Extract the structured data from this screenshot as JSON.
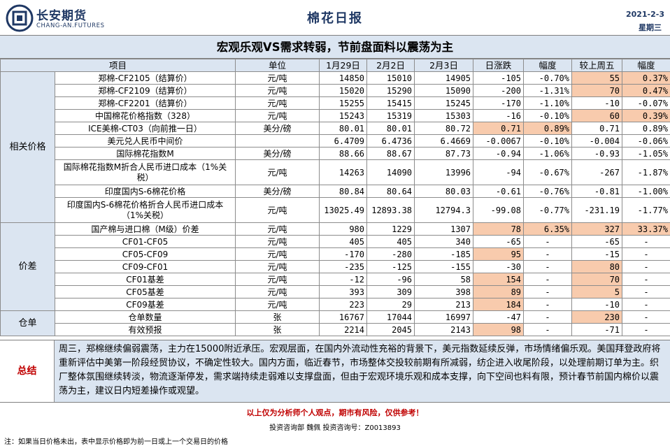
{
  "header": {
    "company_cn": "长安期货",
    "company_en": "CHANG-AN.FUTURES",
    "title": "棉花日报",
    "date": "2021-2-3",
    "weekday": "星期三",
    "brand_color": "#1f3864"
  },
  "headline": "宏观乐观VS需求转弱，节前盘面料以震荡为主",
  "table": {
    "columns": [
      "项目",
      "单位",
      "1月29日",
      "2月2日",
      "2月3日",
      "日涨跌",
      "幅度",
      "较上周五",
      "幅度"
    ],
    "groups": {
      "price": "相关价格",
      "spread": "价差",
      "warehouse": "仓单"
    },
    "price_rows": [
      {
        "item": "郑棉-CF2105（结算价）",
        "unit": "元/吨",
        "d1": "14850",
        "d2": "15010",
        "d3": "14905",
        "chg": "-105",
        "pct": "-0.70%",
        "wchg": "55",
        "wpct": "0.37%"
      },
      {
        "item": "郑棉-CF2109（结算价）",
        "unit": "元/吨",
        "d1": "15020",
        "d2": "15290",
        "d3": "15090",
        "chg": "-200",
        "pct": "-1.31%",
        "wchg": "70",
        "wpct": "0.47%"
      },
      {
        "item": "郑棉-CF2201（结算价）",
        "unit": "元/吨",
        "d1": "15255",
        "d2": "15415",
        "d3": "15245",
        "chg": "-170",
        "pct": "-1.10%",
        "wchg": "-10",
        "wpct": "-0.07%"
      },
      {
        "item": "中国棉花价格指数（328）",
        "unit": "元/吨",
        "d1": "15243",
        "d2": "15319",
        "d3": "15303",
        "chg": "-16",
        "pct": "-0.10%",
        "wchg": "60",
        "wpct": "0.39%"
      },
      {
        "item": "ICE美棉-CT03（向前推一日）",
        "unit": "美分/磅",
        "d1": "80.01",
        "d2": "80.01",
        "d3": "80.72",
        "chg": "0.71",
        "pct": "0.89%",
        "wchg": "0.71",
        "wpct": "0.89%"
      },
      {
        "item": "美元兑人民币中间价",
        "unit": "",
        "d1": "6.4709",
        "d2": "6.4736",
        "d3": "6.4669",
        "chg": "-0.0067",
        "pct": "-0.10%",
        "wchg": "-0.004",
        "wpct": "-0.06%"
      },
      {
        "item": "国际棉花指数M",
        "unit": "美分/磅",
        "d1": "88.66",
        "d2": "88.67",
        "d3": "87.73",
        "chg": "-0.94",
        "pct": "-1.06%",
        "wchg": "-0.93",
        "wpct": "-1.05%"
      },
      {
        "item": "国际棉花指数M折合人民币进口成本（1%关税）",
        "unit": "元/吨",
        "d1": "14263",
        "d2": "14090",
        "d3": "13996",
        "chg": "-94",
        "pct": "-0.67%",
        "wchg": "-267",
        "wpct": "-1.87%"
      },
      {
        "item": "印度国内S-6棉花价格",
        "unit": "美分/磅",
        "d1": "80.84",
        "d2": "80.64",
        "d3": "80.03",
        "chg": "-0.61",
        "pct": "-0.76%",
        "wchg": "-0.81",
        "wpct": "-1.00%"
      },
      {
        "item": "印度国内S-6棉花价格折合人民币进口成本（1%关税）",
        "unit": "元/吨",
        "d1": "13025.49",
        "d2": "12893.38",
        "d3": "12794.3",
        "chg": "-99.08",
        "pct": "-0.77%",
        "wchg": "-231.19",
        "wpct": "-1.77%"
      }
    ],
    "spread_rows": [
      {
        "item": "国产棉与进口棉（M级）价差",
        "unit": "元/吨",
        "d1": "980",
        "d2": "1229",
        "d3": "1307",
        "chg": "78",
        "pct": "6.35%",
        "wchg": "327",
        "wpct": "33.37%"
      },
      {
        "item": "CF01-CF05",
        "unit": "元/吨",
        "d1": "405",
        "d2": "405",
        "d3": "340",
        "chg": "-65",
        "pct": "-",
        "wchg": "-65",
        "wpct": "-"
      },
      {
        "item": "CF05-CF09",
        "unit": "元/吨",
        "d1": "-170",
        "d2": "-280",
        "d3": "-185",
        "chg": "95",
        "pct": "-",
        "wchg": "-15",
        "wpct": "-"
      },
      {
        "item": "CF09-CF01",
        "unit": "元/吨",
        "d1": "-235",
        "d2": "-125",
        "d3": "-155",
        "chg": "-30",
        "pct": "-",
        "wchg": "80",
        "wpct": "-"
      },
      {
        "item": "CF01基差",
        "unit": "元/吨",
        "d1": "-12",
        "d2": "-96",
        "d3": "58",
        "chg": "154",
        "pct": "-",
        "wchg": "70",
        "wpct": "-"
      },
      {
        "item": "CF05基差",
        "unit": "元/吨",
        "d1": "393",
        "d2": "309",
        "d3": "398",
        "chg": "89",
        "pct": "-",
        "wchg": "5",
        "wpct": "-"
      },
      {
        "item": "CF09基差",
        "unit": "元/吨",
        "d1": "223",
        "d2": "29",
        "d3": "213",
        "chg": "184",
        "pct": "-",
        "wchg": "-10",
        "wpct": "-"
      }
    ],
    "warehouse_rows": [
      {
        "item": "仓单数量",
        "unit": "张",
        "d1": "16767",
        "d2": "17044",
        "d3": "16997",
        "chg": "-47",
        "pct": "-",
        "wchg": "230",
        "wpct": "-"
      },
      {
        "item": "有效预报",
        "unit": "张",
        "d1": "2214",
        "d2": "2045",
        "d3": "2143",
        "chg": "98",
        "pct": "-",
        "wchg": "-71",
        "wpct": "-"
      }
    ],
    "highlight_color": "#f8cbad",
    "header_color": "#dbe5f1"
  },
  "summary": {
    "label": "总结",
    "text": "周三，郑棉继续偏弱震荡，主力在15000附近承压。宏观层面，在国内外流动性充裕的背景下，美元指数延续反弹，市场情绪偏乐观。美国拜登政府将重新评估中美第一阶段经贸协议，不确定性较大。国内方面，临近春节，市场整体交投较前期有所减弱，纺企进入收尾阶段，以处理前期订单为主。织厂整体氛围继续转淡，物流逐渐停发，需求端持续走弱难以支撑盘面，但由于宏观环境乐观和成本支撑，向下空间也料有限，预计春节前国内棉价以震荡为主，建议日内短差操作或观望。"
  },
  "disclaimer": "以上仅为分析师个人观点，期市有风险，仅供参考！",
  "analyst": "投资咨询部  魏佩    投资咨询号：Z0013893",
  "footnote": "注：如果当日价格未出，表中显示价格即为前一日或上一个交易日的价格"
}
